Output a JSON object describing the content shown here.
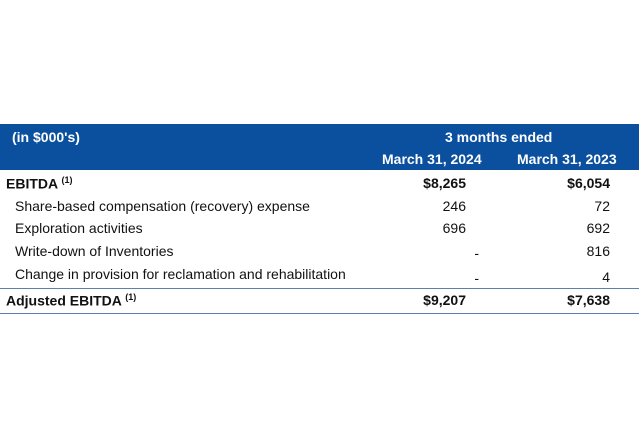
{
  "header": {
    "units": "(in $000's)",
    "period": "3 months ended",
    "col1": "March 31, 2024",
    "col2": "March 31, 2023"
  },
  "rows": [
    {
      "label": "EBITDA",
      "footnote": "(1)",
      "v1": "$8,265",
      "v2": "$6,054"
    },
    {
      "label": "Share-based compensation (recovery) expense",
      "v1": "246",
      "v2": "72"
    },
    {
      "label": "Exploration activities",
      "v1": "696",
      "v2": "692"
    },
    {
      "label": "Write-down of Inventories",
      "v1": "-",
      "v2": "816"
    },
    {
      "label": "Change in provision for reclamation and rehabilitation",
      "v1": "-",
      "v2": "4"
    },
    {
      "label": "Adjusted EBITDA",
      "footnote": "(1)",
      "v1": "$9,207",
      "v2": "$7,638"
    }
  ]
}
